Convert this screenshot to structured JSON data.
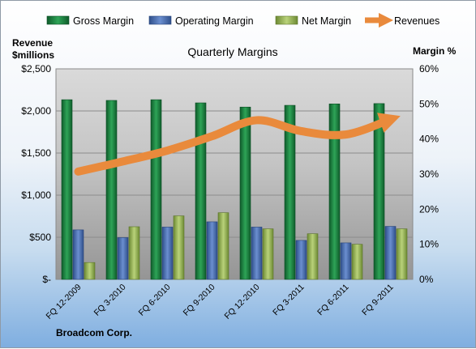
{
  "chart_data": {
    "type": "bar",
    "title": "Quarterly Margins",
    "y_left_label": [
      "Revenue",
      "$millions"
    ],
    "y_right_label": "Margin %",
    "footer": "Broadcom Corp.",
    "categories": [
      "FQ 12-2009",
      "FQ 3-2010",
      "FQ 6-2010",
      "FQ 9-2010",
      "FQ 12-2010",
      "FQ 3-2011",
      "FQ 6-2011",
      "FQ 9-2011"
    ],
    "series": [
      {
        "name": "Gross Margin",
        "type": "bar",
        "axis": "right",
        "values": [
          51.2,
          51.0,
          51.2,
          50.3,
          49.1,
          49.6,
          50.0,
          50.1
        ],
        "color": "#1e8a43"
      },
      {
        "name": "Operating Margin",
        "type": "bar",
        "axis": "right",
        "values": [
          14.1,
          11.9,
          14.9,
          16.4,
          14.9,
          11.1,
          10.4,
          15.1
        ],
        "color": "#4a72b8"
      },
      {
        "name": "Net Margin",
        "type": "bar",
        "axis": "right",
        "values": [
          4.8,
          15.0,
          18.1,
          19.0,
          14.4,
          13.0,
          10.0,
          14.4
        ],
        "color": "#9bbb59"
      },
      {
        "name": "Revenues",
        "type": "line",
        "axis": "left",
        "values": [
          1280,
          1400,
          1530,
          1700,
          1890,
          1760,
          1720,
          1900
        ],
        "color": "#e98a3c"
      }
    ],
    "y_left": {
      "min": 0,
      "max": 2500,
      "step": 500,
      "tick_labels": [
        "$-",
        "$500",
        "$1,000",
        "$1,500",
        "$2,000",
        "$2,500"
      ]
    },
    "y_right": {
      "min": 0,
      "max": 60,
      "step": 10,
      "tick_labels": [
        "0%",
        "10%",
        "20%",
        "30%",
        "40%",
        "50%",
        "60%"
      ]
    },
    "legend_position": "top",
    "grid": true
  }
}
